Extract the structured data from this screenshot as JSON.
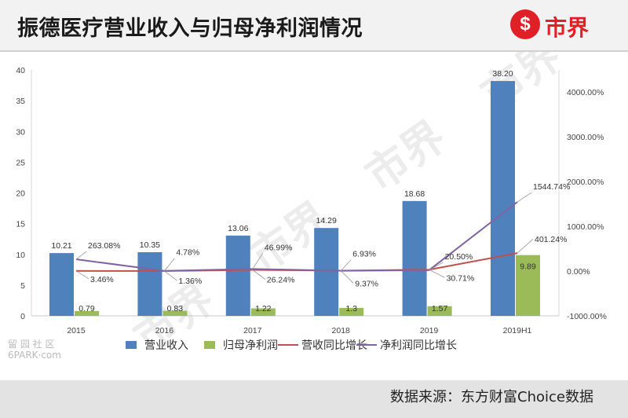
{
  "header": {
    "title": "振德医疗营业收入与归母净利润情况"
  },
  "logo": {
    "mark": "$",
    "text": "市界"
  },
  "footer": {
    "source": "数据来源：东方财富Choice数据"
  },
  "watermark": {
    "corner_line1": "留 园 社 区",
    "corner_line2": "6PARK·com"
  },
  "colors": {
    "revenue": "#4f81bd",
    "profit": "#9bbb59",
    "rev_growth": "#c0504d",
    "profit_growth": "#8064a2"
  },
  "chart_data": {
    "type": "bar",
    "categories": [
      "2015",
      "2016",
      "2017",
      "2018",
      "2019",
      "2019H1"
    ],
    "series": [
      {
        "name": "营业收入",
        "type": "bar",
        "axis": "left",
        "values": [
          10.21,
          10.35,
          13.06,
          14.29,
          18.68,
          38.2
        ],
        "labels": [
          "10.21",
          "10.35",
          "13.06",
          "14.29",
          "18.68",
          "38.20"
        ]
      },
      {
        "name": "归母净利润",
        "type": "bar",
        "axis": "left",
        "values": [
          0.79,
          0.83,
          1.22,
          1.3,
          1.57,
          9.89
        ],
        "labels": [
          "0.79",
          "0.83",
          "1.22",
          "1.3",
          "1.57",
          "9.89"
        ]
      },
      {
        "name": "营收同比增长",
        "type": "line",
        "axis": "right",
        "values": [
          3.46,
          1.36,
          26.24,
          9.37,
          30.71,
          401.24
        ],
        "labels": [
          "3.46%",
          "1.36%",
          "26.24%",
          "9.37%",
          "30.71%",
          "401.24%"
        ]
      },
      {
        "name": "净利润同比增长",
        "type": "line",
        "axis": "right",
        "values": [
          263.08,
          4.78,
          46.99,
          6.93,
          20.5,
          1544.74
        ],
        "labels": [
          "263.08%",
          "4.78%",
          "46.99%",
          "6.93%",
          "20.50%",
          "1544.74%"
        ]
      }
    ],
    "y_left": {
      "min": 0,
      "max": 40,
      "ticks": [
        "0",
        "5",
        "10",
        "15",
        "20",
        "25",
        "30",
        "35",
        "40"
      ]
    },
    "y_right": {
      "min": -1000,
      "max": 4500,
      "ticks": [
        "-1000.00%",
        "0.00%",
        "1000.00%",
        "2000.00%",
        "3000.00%",
        "4000.00%"
      ]
    },
    "grid": false,
    "legend": "bottom"
  }
}
